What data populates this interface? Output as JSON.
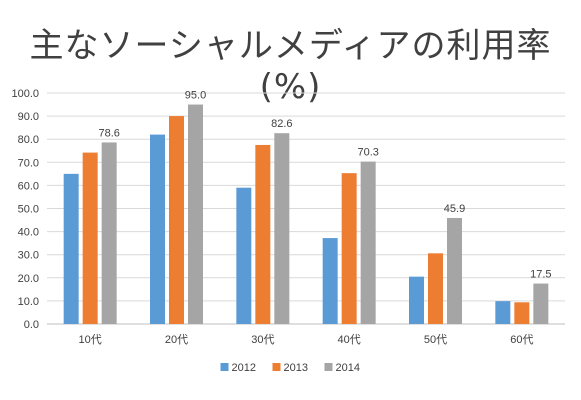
{
  "chart_data": {
    "type": "bar",
    "title": "主なソーシャルメディアの利用率(%)",
    "xlabel": "",
    "ylabel": "",
    "ylim": [
      0,
      100
    ],
    "yticks": [
      "0.0",
      "10.0",
      "20.0",
      "30.0",
      "40.0",
      "50.0",
      "60.0",
      "70.0",
      "80.0",
      "90.0",
      "100.0"
    ],
    "categories": [
      "10代",
      "20代",
      "30代",
      "40代",
      "50代",
      "60代"
    ],
    "series": [
      {
        "name": "2012",
        "color": "#5b9bd5",
        "values": [
          65.0,
          82.0,
          59.0,
          37.2,
          20.5,
          9.9
        ]
      },
      {
        "name": "2013",
        "color": "#ed7d31",
        "values": [
          74.2,
          90.0,
          77.5,
          65.3,
          30.6,
          9.4
        ]
      },
      {
        "name": "2014",
        "color": "#a5a5a5",
        "values": [
          78.6,
          95.0,
          82.6,
          70.3,
          45.9,
          17.5
        ]
      }
    ],
    "data_labels": {
      "series": "2014",
      "values": [
        "78.6",
        "95.0",
        "82.6",
        "70.3",
        "45.9",
        "17.5"
      ]
    },
    "grid": true,
    "legend": "bottom"
  }
}
